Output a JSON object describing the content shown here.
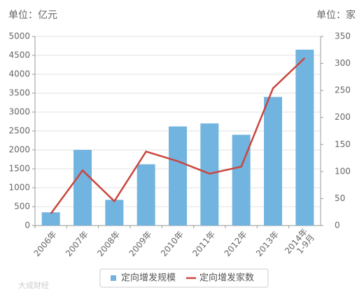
{
  "chart_data": {
    "type": "bar-line",
    "left_unit": "单位：亿元",
    "right_unit": "单位：家",
    "watermark": "大成财经",
    "categories": [
      "2006年",
      "2007年",
      "2008年",
      "2009年",
      "2010年",
      "2011年",
      "2012年",
      "2013年",
      "2014年 1-9月"
    ],
    "series": [
      {
        "name": "定向增发规模",
        "type": "bar",
        "color": "#72b4e0",
        "values": [
          350,
          2000,
          680,
          1620,
          2620,
          2700,
          2400,
          3400,
          4650
        ]
      },
      {
        "name": "定向增发家数",
        "type": "line",
        "axis": "y2",
        "color": "#c9463d",
        "values": [
          22,
          102,
          45,
          137,
          119,
          96,
          109,
          254,
          310
        ]
      }
    ],
    "ylim": [
      0,
      5000
    ],
    "yticks": [
      0,
      500,
      1000,
      1500,
      2000,
      2500,
      3000,
      3500,
      4000,
      4500,
      5000
    ],
    "y2lim": [
      0,
      350
    ],
    "y2ticks": [
      0,
      50,
      100,
      150,
      200,
      250,
      300,
      350
    ],
    "grid": true
  }
}
